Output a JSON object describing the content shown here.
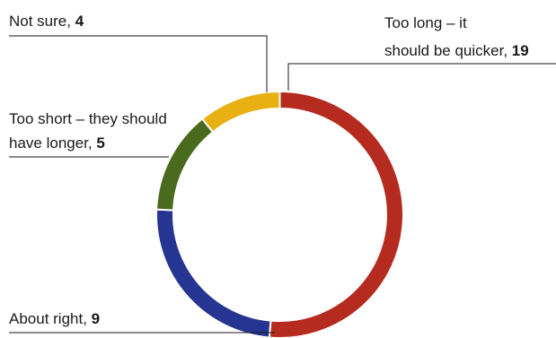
{
  "chart_data": {
    "type": "pie",
    "style": "donut",
    "categories": [
      "Too long – it should be quicker",
      "About right",
      "Too short – they should have longer",
      "Not sure"
    ],
    "values": [
      19,
      9,
      5,
      4
    ],
    "slices": [
      {
        "label_lines": [
          "Too long – it",
          "should be quicker, "
        ],
        "value": 19,
        "value_label": "19",
        "color": "#b52b1f"
      },
      {
        "label_lines": [
          "About right, "
        ],
        "value": 9,
        "value_label": "9",
        "color": "#253591"
      },
      {
        "label_lines": [
          "Too short – they should",
          "have longer, "
        ],
        "value": 5,
        "value_label": "5",
        "color": "#4a6b1e"
      },
      {
        "label_lines": [
          "Not sure, "
        ],
        "value": 4,
        "value_label": "4",
        "color": "#e8b012"
      }
    ],
    "start_position": "top",
    "direction": "clockwise",
    "legend": "none"
  }
}
